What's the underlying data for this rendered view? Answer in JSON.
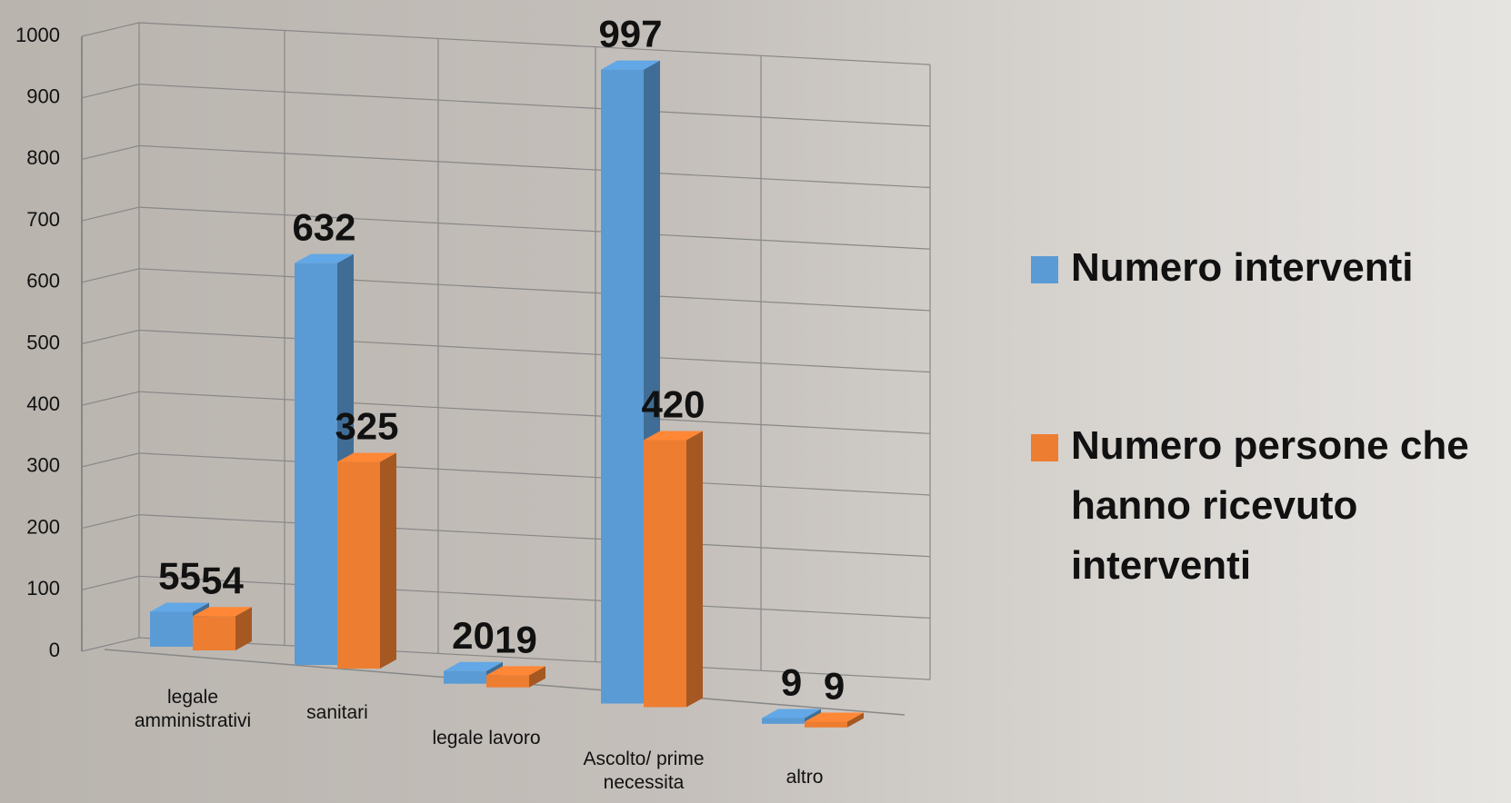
{
  "chart_data": {
    "type": "bar3d",
    "categories": [
      "legale amministrativi",
      "sanitari",
      "legale lavoro",
      "Ascolto/ prime necessita",
      "altro"
    ],
    "series": [
      {
        "name": "Numero interventi",
        "color": "#5b9bd5",
        "values": [
          55,
          632,
          20,
          997,
          9
        ]
      },
      {
        "name": "Numero persone che hanno ricevuto interventi",
        "color": "#ed7d31",
        "values": [
          54,
          325,
          19,
          420,
          9
        ]
      }
    ],
    "ylim": [
      0,
      1000
    ],
    "yticks": [
      0,
      100,
      200,
      300,
      400,
      500,
      600,
      700,
      800,
      900,
      1000
    ],
    "grid": true,
    "legend": "right"
  }
}
